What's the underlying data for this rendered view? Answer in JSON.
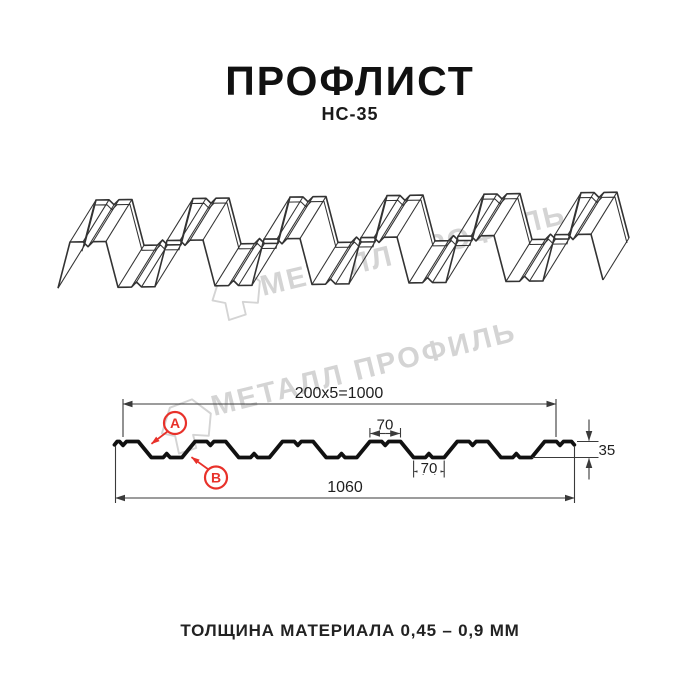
{
  "page": {
    "title": "ПРОФЛИСТ",
    "subtitle": "НС-35",
    "footer": "ТОЛЩИНА МАТЕРИАЛА 0,45 – 0,9 ММ"
  },
  "watermark": {
    "brand": "МЕТАЛЛ ПРОФИЛЬ",
    "color": "#d4d4d4"
  },
  "diagram": {
    "dims": {
      "coverage": "200x5=1000",
      "crest_width": "70",
      "valley_width": "70",
      "total_width": "1060",
      "height": "35"
    },
    "callouts": {
      "a": "A",
      "b": "B"
    },
    "colors": {
      "line": "#333333",
      "section": "#111111",
      "dim": "#3a3a3a",
      "red": "#e8312a",
      "watermark": "#d4d4d4"
    }
  }
}
